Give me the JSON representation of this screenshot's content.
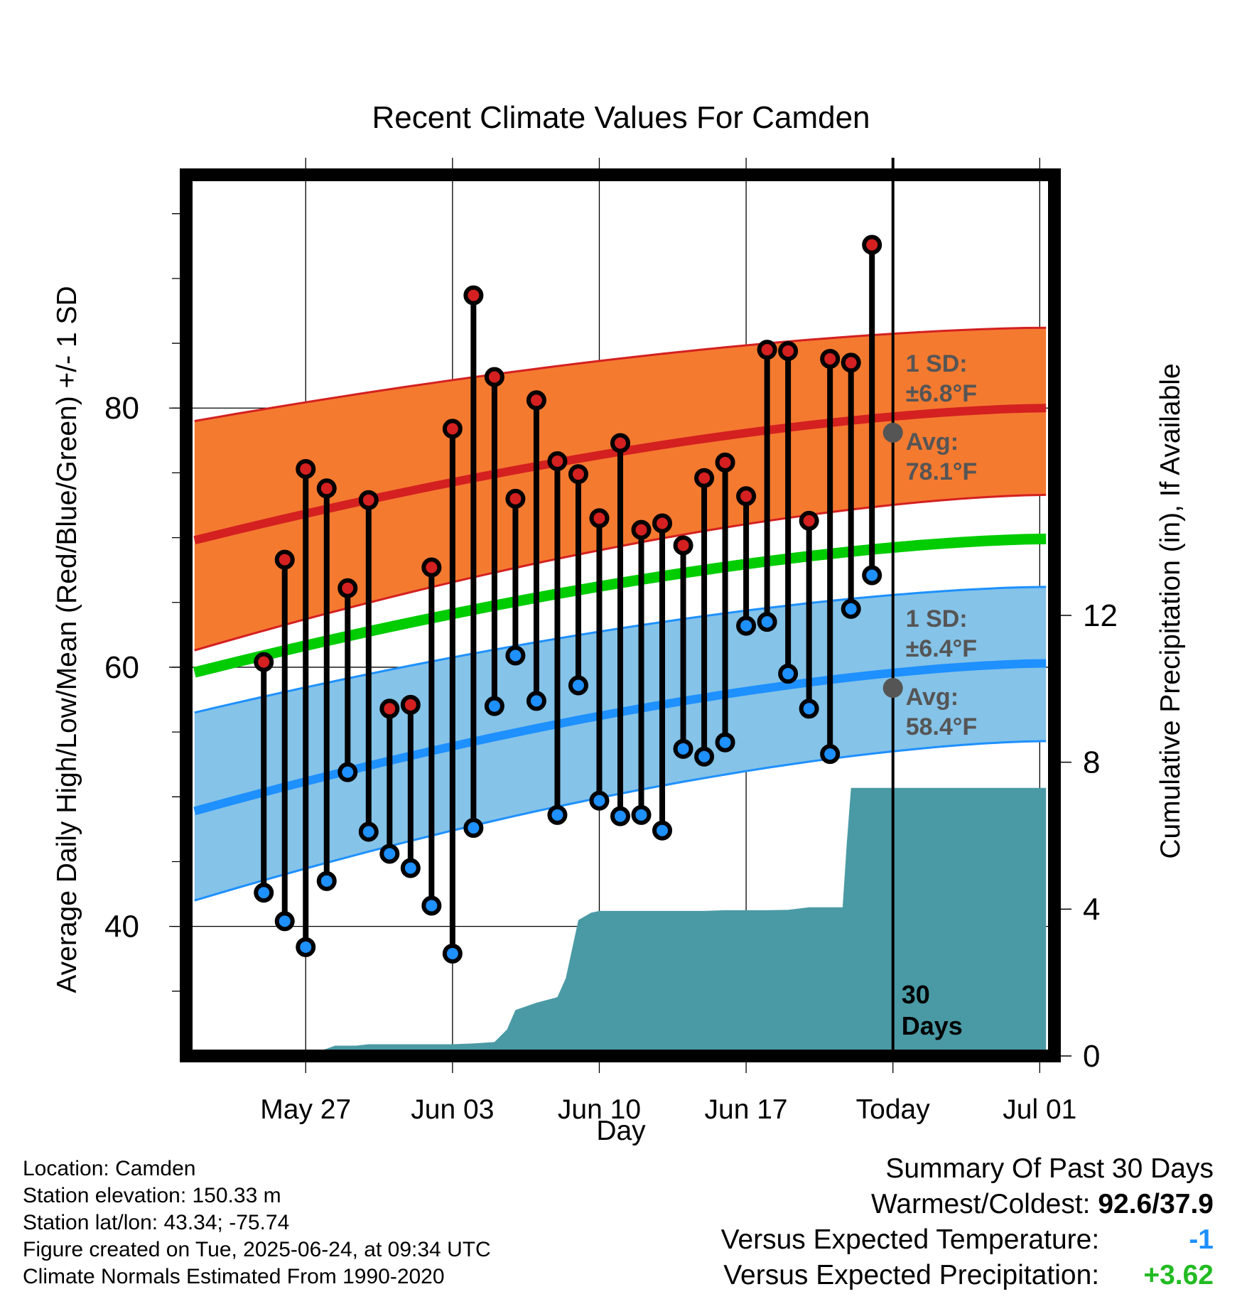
{
  "chart_data": {
    "type": "line",
    "title": "Recent Climate Values For Camden",
    "xlabel": "Day",
    "ylabel": "Average Daily High/Low/Mean (Red/Blue/Green) +/- 1 SD",
    "y2label": "Cumulative Precipitation (in), If Available",
    "ylim": [
      30,
      98
    ],
    "y2lim": [
      0,
      24
    ],
    "xlim": [
      -2.7,
      38.7
    ],
    "x_ticks": [
      {
        "day": 3,
        "label": "May 27"
      },
      {
        "day": 10,
        "label": "Jun 03"
      },
      {
        "day": 17,
        "label": "Jun 10"
      },
      {
        "day": 24,
        "label": "Jun 17"
      },
      {
        "day": 31,
        "label": "Today"
      },
      {
        "day": 38,
        "label": "Jul 01"
      }
    ],
    "y_ticks": [
      40,
      60,
      80
    ],
    "y2_ticks": [
      0,
      4,
      8,
      12
    ],
    "grid": true,
    "normals": {
      "x_start": -2.3,
      "x_end": 38.3,
      "high_mean": [
        69.8,
        80.0
      ],
      "high_band_top": [
        79.0,
        86.2
      ],
      "high_band_bottom": [
        61.3,
        73.3
      ],
      "mean_avg": [
        59.6,
        69.9
      ],
      "low_mean": [
        48.9,
        60.3
      ],
      "low_band_top": [
        56.5,
        66.2
      ],
      "low_band_bottom": [
        42.0,
        54.3
      ]
    },
    "series": [
      {
        "name": "High",
        "color": "#d42020",
        "values": [
          60.4,
          68.3,
          75.3,
          73.8,
          66.1,
          72.9,
          56.8,
          57.1,
          67.7,
          78.4,
          88.7,
          82.4,
          73.0,
          80.6,
          75.9,
          74.9,
          71.5,
          77.3,
          70.6,
          71.1,
          69.4,
          74.6,
          75.8,
          73.2,
          84.5,
          84.4,
          71.3,
          83.8,
          83.5,
          92.6
        ]
      },
      {
        "name": "Low",
        "color": "#1e90ff",
        "values": [
          42.6,
          40.4,
          38.4,
          43.5,
          51.9,
          47.3,
          45.6,
          44.5,
          41.6,
          37.9,
          47.6,
          57.0,
          60.9,
          57.4,
          48.6,
          58.6,
          49.7,
          48.5,
          48.6,
          47.4,
          53.7,
          53.1,
          54.2,
          63.2,
          63.5,
          59.5,
          56.8,
          53.3,
          64.5,
          67.1
        ]
      }
    ],
    "precip": {
      "color": "#4a9aa5",
      "x": [
        -2.3,
        1.4,
        1.6,
        2.4,
        3.0,
        3.6,
        4.0,
        4.4,
        5.4,
        6.0,
        7.0,
        8.0,
        9.0,
        10.0,
        11.0,
        12.0,
        12.6,
        13.0,
        14.0,
        15.0,
        15.4,
        16.0,
        16.6,
        17.0,
        18.0,
        19.0,
        20.0,
        22.0,
        23.0,
        24.0,
        25.0,
        26.0,
        27.0,
        28.0,
        28.6,
        28.8,
        29.0,
        31.0,
        38.3
      ],
      "values": [
        0.0,
        0.0,
        0.02,
        0.1,
        0.12,
        0.12,
        0.2,
        0.28,
        0.28,
        0.32,
        0.32,
        0.32,
        0.32,
        0.32,
        0.34,
        0.38,
        0.72,
        1.25,
        1.45,
        1.6,
        2.12,
        3.7,
        3.9,
        3.95,
        3.95,
        3.95,
        3.95,
        3.95,
        3.97,
        3.97,
        3.97,
        3.98,
        4.05,
        4.05,
        4.05,
        5.8,
        7.3,
        7.3,
        7.3
      ]
    },
    "annotations": [
      {
        "sd_label": "1 SD:",
        "sd_value": "±6.8°F",
        "avg_label": "Avg:",
        "avg_value": "78.1°F",
        "avg": 78.1,
        "color": "#555555"
      },
      {
        "sd_label": "1 SD:",
        "sd_value": "±6.4°F",
        "avg_label": "Avg:",
        "avg_value": "58.4°F",
        "avg": 58.4,
        "color": "#555555"
      }
    ],
    "today_day": 31,
    "today_label_line1": "30",
    "today_label_line2": "Days",
    "colors": {
      "high_band": "#f47a30",
      "high_line": "#d42020",
      "low_band": "#85c3e8",
      "low_line": "#1e90ff",
      "mean_line": "#00cc00",
      "precip": "#4a9aa5"
    }
  },
  "info": {
    "location": "Location: Camden",
    "elevation": "Station elevation: 150.33 m",
    "latlon": "Station lat/lon: 43.34; -75.74",
    "created": "Figure created on Tue, 2025-06-24, at 09:34 UTC",
    "normals": "Climate Normals Estimated From 1990-2020"
  },
  "summary": {
    "title": "Summary Of Past 30 Days",
    "warm_cold_label": "Warmest/Coldest:",
    "warm_cold_value": "92.6/37.9",
    "temp_label": "Versus Expected Temperature:",
    "temp_value": "-1",
    "temp_color": "#1e90ff",
    "precip_label": "Versus Expected Precipitation:",
    "precip_value": "+3.62",
    "precip_color": "#22bb22"
  }
}
